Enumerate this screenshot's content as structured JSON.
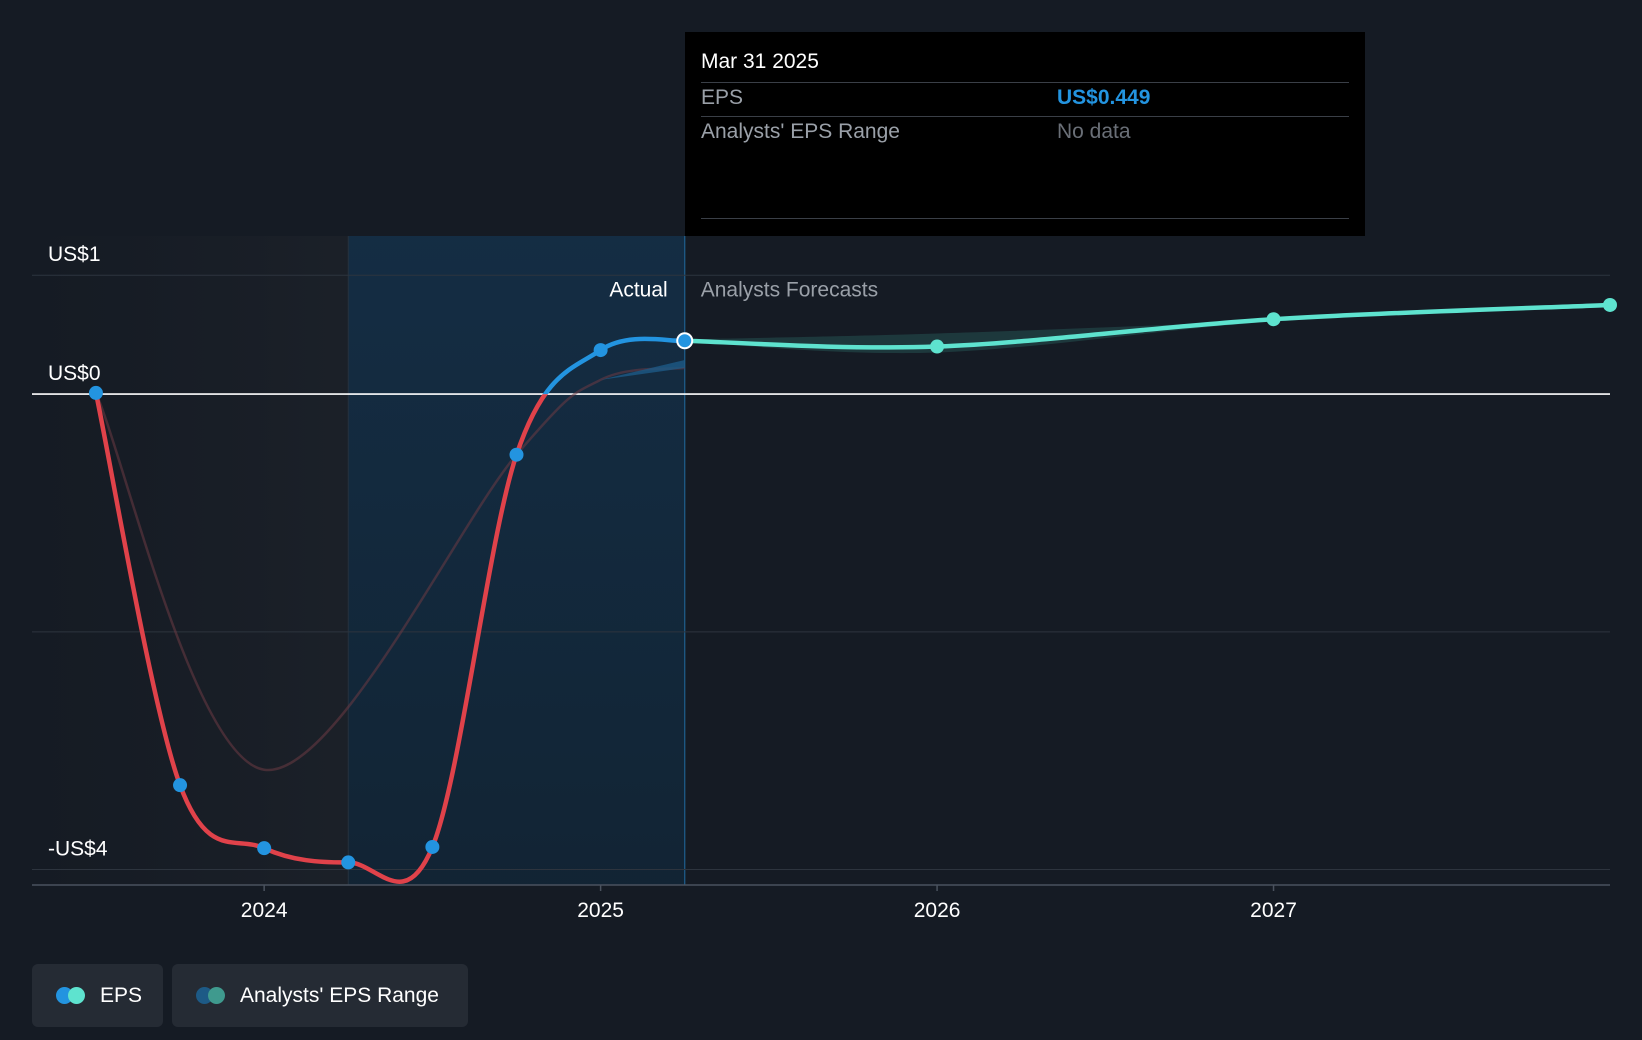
{
  "tooltip": {
    "date": "Mar 31 2025",
    "rows": [
      {
        "label": "EPS",
        "value": "US$0.449"
      },
      {
        "label": "Analysts' EPS Range",
        "value": "No data"
      }
    ]
  },
  "legend": [
    {
      "label": "EPS",
      "colors": [
        "#2394e0",
        "#5ee3cf"
      ]
    },
    {
      "label": "Analysts' EPS Range",
      "colors": [
        "#1d5a86",
        "#3f9a8e"
      ]
    }
  ],
  "section_labels": {
    "actual": "Actual",
    "forecast": "Analysts Forecasts"
  },
  "colors": {
    "background": "#151b24",
    "actual_positive": "#2394e0",
    "actual_negative": "#e0424a",
    "forecast": "#5ee3cf"
  },
  "chart_data": {
    "type": "line",
    "y_tick_labels": [
      {
        "value": 1,
        "label": "US$1"
      },
      {
        "value": 0,
        "label": "US$0"
      },
      {
        "value": -4,
        "label": "-US$4"
      }
    ],
    "x_tick_labels": [
      {
        "value": 2024.0,
        "label": "2024"
      },
      {
        "value": 2025.0,
        "label": "2025"
      },
      {
        "value": 2026.0,
        "label": "2026"
      },
      {
        "value": 2027.0,
        "label": "2027"
      }
    ],
    "xlim": [
      2023.31,
      2028.0
    ],
    "ylim": [
      -4.13,
      1.33
    ],
    "zero_line": 0,
    "actual_forecast_split": 2025.25,
    "past_year_shade_start": 2024.25,
    "series": [
      {
        "name": "EPS",
        "kind": "actual",
        "points": [
          {
            "x": 2023.5,
            "y": 0.01
          },
          {
            "x": 2023.75,
            "y": -3.29
          },
          {
            "x": 2024.0,
            "y": -3.82
          },
          {
            "x": 2024.25,
            "y": -3.94
          },
          {
            "x": 2024.5,
            "y": -3.81
          },
          {
            "x": 2024.75,
            "y": -0.51
          },
          {
            "x": 2025.0,
            "y": 0.37
          },
          {
            "x": 2025.25,
            "y": 0.449
          }
        ]
      },
      {
        "name": "EPS",
        "kind": "forecast",
        "points": [
          {
            "x": 2025.25,
            "y": 0.449
          },
          {
            "x": 2026.0,
            "y": 0.4
          },
          {
            "x": 2027.0,
            "y": 0.63
          },
          {
            "x": 2028.0,
            "y": 0.75
          }
        ]
      }
    ],
    "faint_trend": [
      {
        "x": 2023.5,
        "y": 0.01
      },
      {
        "x": 2024.0,
        "y": -3.16
      },
      {
        "x": 2024.75,
        "y": -0.51
      },
      {
        "x": 2025.0,
        "y": 0.12
      },
      {
        "x": 2025.25,
        "y": 0.22
      }
    ],
    "forecast_range": {
      "upper": [
        {
          "x": 2025.25,
          "y": 0.46
        },
        {
          "x": 2026.0,
          "y": 0.51
        },
        {
          "x": 2027.0,
          "y": 0.62
        },
        {
          "x": 2028.0,
          "y": 0.76
        }
      ],
      "lower": [
        {
          "x": 2025.25,
          "y": 0.44
        },
        {
          "x": 2026.0,
          "y": 0.35
        },
        {
          "x": 2027.0,
          "y": 0.61
        },
        {
          "x": 2028.0,
          "y": 0.74
        }
      ]
    }
  }
}
